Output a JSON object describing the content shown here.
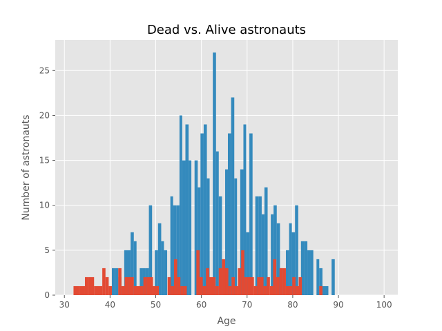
{
  "chart_data": {
    "type": "bar",
    "title": "Dead vs. Alive astronauts",
    "xlabel": "Age",
    "ylabel": "Number of astronauts",
    "xlim": [
      28,
      103
    ],
    "ylim": [
      0,
      28.4
    ],
    "xticks": [
      "30",
      "40",
      "50",
      "60",
      "70",
      "80",
      "90",
      "100"
    ],
    "yticks": [
      "0",
      "5",
      "10",
      "15",
      "20",
      "25"
    ],
    "grid": true,
    "style": "ggplot",
    "series": [
      {
        "color": "#348ABD",
        "bins": [
          [
            37.1,
            37.8,
            1
          ],
          [
            40.4,
            41.1,
            3
          ],
          [
            41.1,
            41.8,
            3
          ],
          [
            41.8,
            42.5,
            2
          ],
          [
            43.1,
            43.8,
            5
          ],
          [
            43.8,
            44.5,
            5
          ],
          [
            44.5,
            45.2,
            7
          ],
          [
            45.2,
            45.8,
            6
          ],
          [
            46.5,
            47.2,
            3
          ],
          [
            47.2,
            47.8,
            3
          ],
          [
            47.8,
            48.5,
            3
          ],
          [
            48.5,
            49.2,
            10
          ],
          [
            49.8,
            50.5,
            5
          ],
          [
            50.5,
            51.2,
            8
          ],
          [
            51.2,
            51.8,
            6
          ],
          [
            51.8,
            52.5,
            5
          ],
          [
            53.2,
            53.8,
            11
          ],
          [
            53.8,
            54.5,
            10
          ],
          [
            54.5,
            55.2,
            10
          ],
          [
            55.2,
            55.8,
            20
          ],
          [
            55.8,
            56.5,
            15
          ],
          [
            56.5,
            57.2,
            19
          ],
          [
            57.2,
            57.8,
            15
          ],
          [
            58.5,
            59.2,
            15
          ],
          [
            59.2,
            59.8,
            12
          ],
          [
            59.8,
            60.5,
            18
          ],
          [
            60.5,
            61.2,
            19
          ],
          [
            61.2,
            61.8,
            13
          ],
          [
            62.5,
            63.2,
            27
          ],
          [
            63.2,
            63.8,
            16
          ],
          [
            63.8,
            64.5,
            11
          ],
          [
            65.2,
            65.8,
            14
          ],
          [
            65.8,
            66.5,
            18
          ],
          [
            66.5,
            67.2,
            22
          ],
          [
            67.2,
            67.8,
            13
          ],
          [
            68.5,
            69.2,
            14
          ],
          [
            69.2,
            69.8,
            19
          ],
          [
            69.8,
            70.5,
            7
          ],
          [
            70.5,
            71.2,
            18
          ],
          [
            71.8,
            72.5,
            11
          ],
          [
            72.5,
            73.2,
            11
          ],
          [
            73.2,
            73.8,
            9
          ],
          [
            73.8,
            74.5,
            12
          ],
          [
            75.2,
            75.8,
            9
          ],
          [
            75.8,
            76.5,
            10
          ],
          [
            76.5,
            77.2,
            8
          ],
          [
            77.2,
            77.8,
            3
          ],
          [
            78.5,
            79.2,
            5
          ],
          [
            79.2,
            79.8,
            8
          ],
          [
            79.8,
            80.5,
            7
          ],
          [
            80.5,
            81.2,
            10
          ],
          [
            81.8,
            82.5,
            6
          ],
          [
            82.5,
            83.2,
            6
          ],
          [
            83.2,
            83.8,
            5
          ],
          [
            83.8,
            84.5,
            5
          ],
          [
            85.2,
            85.8,
            4
          ],
          [
            85.8,
            86.5,
            3
          ],
          [
            86.5,
            87.2,
            1
          ],
          [
            87.2,
            87.8,
            1
          ],
          [
            88.5,
            89.2,
            4
          ]
        ]
      },
      {
        "color": "#E24A33",
        "bins": [
          [
            32.0,
            33.2,
            1
          ],
          [
            33.2,
            34.5,
            1
          ],
          [
            34.5,
            35.2,
            2
          ],
          [
            35.2,
            36.5,
            2
          ],
          [
            36.5,
            38.3,
            1
          ],
          [
            38.3,
            39.0,
            3
          ],
          [
            39.0,
            39.7,
            2
          ],
          [
            39.7,
            40.4,
            1
          ],
          [
            41.8,
            42.5,
            3
          ],
          [
            42.5,
            43.2,
            1
          ],
          [
            43.2,
            43.9,
            2
          ],
          [
            43.9,
            45.2,
            2
          ],
          [
            45.2,
            46.6,
            1
          ],
          [
            46.6,
            47.3,
            1
          ],
          [
            47.3,
            48.0,
            2
          ],
          [
            48.0,
            49.4,
            2
          ],
          [
            49.4,
            50.0,
            1
          ],
          [
            50.0,
            50.7,
            1
          ],
          [
            52.6,
            53.3,
            2
          ],
          [
            53.3,
            54.0,
            1
          ],
          [
            54.0,
            54.7,
            4
          ],
          [
            54.7,
            55.4,
            2
          ],
          [
            55.4,
            56.1,
            1
          ],
          [
            56.1,
            56.8,
            1
          ],
          [
            58.9,
            59.6,
            5
          ],
          [
            59.6,
            60.3,
            2
          ],
          [
            60.3,
            61.0,
            1
          ],
          [
            61.0,
            61.7,
            3
          ],
          [
            61.7,
            62.4,
            2
          ],
          [
            62.4,
            63.1,
            2
          ],
          [
            63.1,
            63.8,
            1
          ],
          [
            63.8,
            64.5,
            3
          ],
          [
            64.5,
            65.2,
            4
          ],
          [
            65.2,
            65.9,
            3
          ],
          [
            65.9,
            66.6,
            1
          ],
          [
            66.6,
            67.3,
            2
          ],
          [
            67.3,
            68.0,
            1
          ],
          [
            68.0,
            68.7,
            3
          ],
          [
            68.7,
            69.4,
            5
          ],
          [
            69.4,
            70.1,
            2
          ],
          [
            70.1,
            70.8,
            2
          ],
          [
            70.8,
            71.5,
            2
          ],
          [
            71.5,
            72.2,
            1
          ],
          [
            72.2,
            72.9,
            2
          ],
          [
            72.9,
            73.6,
            2
          ],
          [
            73.6,
            74.3,
            1
          ],
          [
            74.3,
            75.0,
            2
          ],
          [
            75.0,
            75.7,
            1
          ],
          [
            75.7,
            76.4,
            4
          ],
          [
            76.4,
            77.1,
            2
          ],
          [
            77.1,
            77.8,
            3
          ],
          [
            77.8,
            78.5,
            3
          ],
          [
            78.5,
            79.2,
            1
          ],
          [
            79.2,
            79.9,
            1
          ],
          [
            79.9,
            80.6,
            2
          ],
          [
            80.6,
            81.3,
            1
          ],
          [
            81.3,
            82.0,
            2
          ],
          [
            85.8,
            86.5,
            1
          ]
        ]
      }
    ]
  }
}
